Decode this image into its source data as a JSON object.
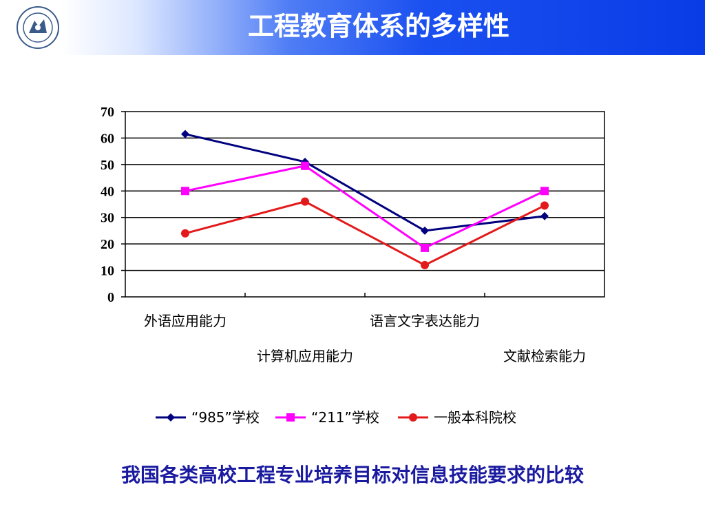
{
  "header": {
    "title": "工程教育体系的多样性"
  },
  "colors": {
    "header_blue": "#0a3ce6",
    "caption": "#1a1aa0",
    "series_985": "#00007f",
    "series_211": "#ff00ff",
    "series_general": "#e31a1c"
  },
  "chart_data": {
    "type": "line",
    "categories": [
      "外语应用能力",
      "计算机应用能力",
      "语言文字表达能力",
      "文献检索能力"
    ],
    "series": [
      {
        "name": "“985”学校",
        "values": [
          61.5,
          51,
          25,
          30.5
        ],
        "marker": "diamond"
      },
      {
        "name": "“211”学校",
        "values": [
          40,
          49.5,
          18.5,
          40
        ],
        "marker": "square"
      },
      {
        "name": "一般本科院校",
        "values": [
          24,
          36,
          12,
          34.5
        ],
        "marker": "circle"
      }
    ],
    "ylim": [
      0,
      70
    ],
    "yticks": [
      0,
      10,
      20,
      30,
      40,
      50,
      60,
      70
    ],
    "grid": true,
    "legend": "bottom"
  },
  "caption": "我国各类高校工程专业培养目标对信息技能要求的比较"
}
